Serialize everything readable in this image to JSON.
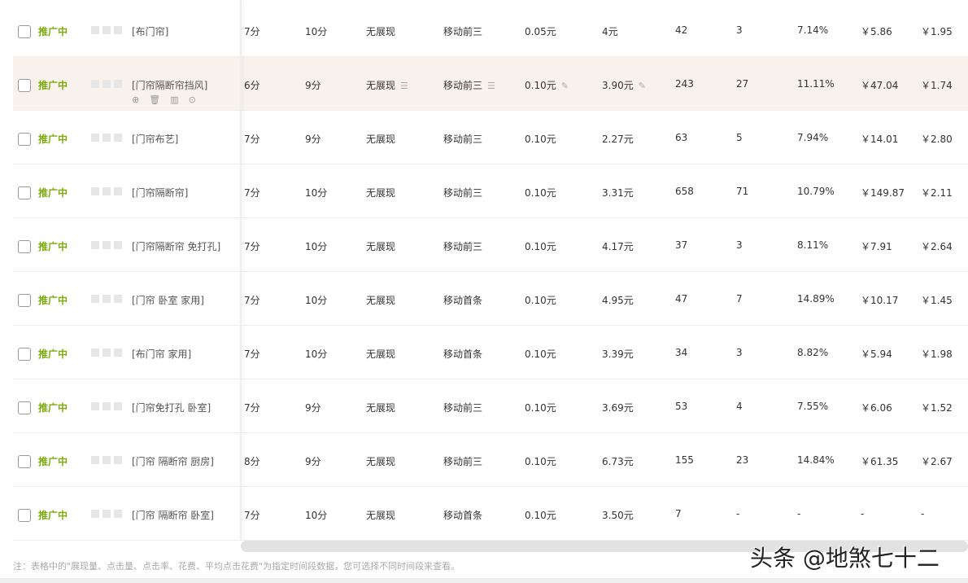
{
  "rows": [
    {
      "status": "推广中",
      "keyword": "[布门帘]",
      "c1": "7分",
      "c2": "10分",
      "c3": "无展现",
      "c4": "移动前三",
      "c5": "0.05元",
      "c6": "4元",
      "c7": "42",
      "c8": "3",
      "c9": "7.14%",
      "c10": "￥5.86",
      "c11": "￥1.95"
    },
    {
      "status": "推广中",
      "keyword": "[门帘隔断帘挡风]",
      "c1": "6分",
      "c2": "9分",
      "c3": "无展现",
      "c4": "移动前三",
      "c5": "0.10元",
      "c6": "3.90元",
      "c7": "243",
      "c8": "27",
      "c9": "11.11%",
      "c10": "￥47.04",
      "c11": "￥1.74"
    },
    {
      "status": "推广中",
      "keyword": "[门帘布艺]",
      "c1": "7分",
      "c2": "9分",
      "c3": "无展现",
      "c4": "移动前三",
      "c5": "0.10元",
      "c6": "2.27元",
      "c7": "63",
      "c8": "5",
      "c9": "7.94%",
      "c10": "￥14.01",
      "c11": "￥2.80"
    },
    {
      "status": "推广中",
      "keyword": "[门帘隔断帘]",
      "c1": "7分",
      "c2": "10分",
      "c3": "无展现",
      "c4": "移动前三",
      "c5": "0.10元",
      "c6": "3.31元",
      "c7": "658",
      "c8": "71",
      "c9": "10.79%",
      "c10": "￥149.87",
      "c11": "￥2.11"
    },
    {
      "status": "推广中",
      "keyword": "[门帘隔断帘 免打孔]",
      "c1": "7分",
      "c2": "10分",
      "c3": "无展现",
      "c4": "移动前三",
      "c5": "0.10元",
      "c6": "4.17元",
      "c7": "37",
      "c8": "3",
      "c9": "8.11%",
      "c10": "￥7.91",
      "c11": "￥2.64"
    },
    {
      "status": "推广中",
      "keyword": "[门帘 卧室 家用]",
      "c1": "7分",
      "c2": "10分",
      "c3": "无展现",
      "c4": "移动首条",
      "c5": "0.10元",
      "c6": "4.95元",
      "c7": "47",
      "c8": "7",
      "c9": "14.89%",
      "c10": "￥10.17",
      "c11": "￥1.45"
    },
    {
      "status": "推广中",
      "keyword": "[布门帘 家用]",
      "c1": "7分",
      "c2": "10分",
      "c3": "无展现",
      "c4": "移动首条",
      "c5": "0.10元",
      "c6": "3.39元",
      "c7": "34",
      "c8": "3",
      "c9": "8.82%",
      "c10": "￥5.94",
      "c11": "￥1.98"
    },
    {
      "status": "推广中",
      "keyword": "[门帘免打孔 卧室]",
      "c1": "7分",
      "c2": "9分",
      "c3": "无展现",
      "c4": "移动前三",
      "c5": "0.10元",
      "c6": "3.69元",
      "c7": "53",
      "c8": "4",
      "c9": "7.55%",
      "c10": "￥6.06",
      "c11": "￥1.52"
    },
    {
      "status": "推广中",
      "keyword": "[门帘 隔断帘 厨房]",
      "c1": "8分",
      "c2": "9分",
      "c3": "无展现",
      "c4": "移动前三",
      "c5": "0.10元",
      "c6": "6.73元",
      "c7": "155",
      "c8": "23",
      "c9": "14.84%",
      "c10": "￥61.35",
      "c11": "￥2.67"
    },
    {
      "status": "推广中",
      "keyword": "[门帘 隔断帘 卧室]",
      "c1": "7分",
      "c2": "10分",
      "c3": "无展现",
      "c4": "移动首条",
      "c5": "0.10元",
      "c6": "3.50元",
      "c7": "7",
      "c8": "-",
      "c9": "-",
      "c10": "-",
      "c11": "-"
    }
  ],
  "highlighted_row": 1,
  "status_color": "#7cab0e",
  "note": "注：表格中的\"展现量、点击量、点击率、花费、平均点击花费\"为指定时间段数据，您可选择不同时间段来查看。",
  "watermark": "头条 @地煞七十二"
}
